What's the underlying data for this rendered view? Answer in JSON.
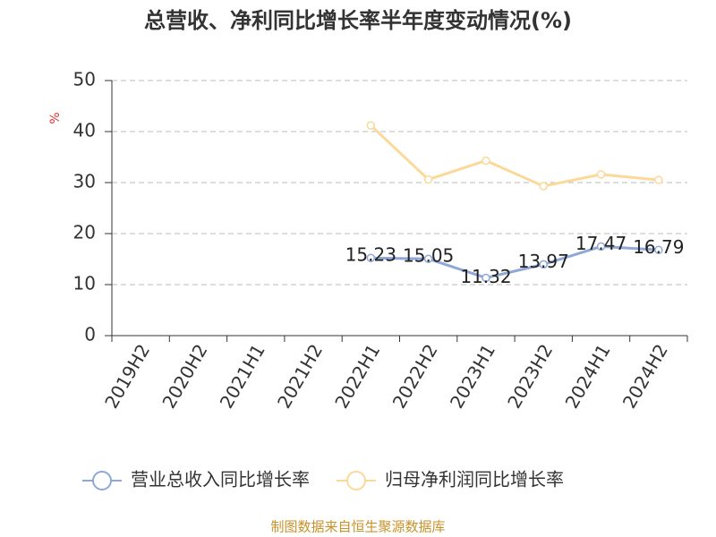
{
  "chart_data": {
    "type": "line",
    "title": "总营收、净利同比增长率半年度变动情况(%)",
    "y_label": "%",
    "categories": [
      "2019H2",
      "2020H2",
      "2021H1",
      "2021H2",
      "2022H1",
      "2022H2",
      "2023H1",
      "2023H2",
      "2024H1",
      "2024H2"
    ],
    "series": [
      {
        "name": "营业总收入同比增长率",
        "color": "#8fa8d8",
        "values": [
          null,
          null,
          null,
          null,
          15.23,
          15.05,
          11.32,
          13.97,
          17.47,
          16.79
        ],
        "data_labels": true
      },
      {
        "name": "归母净利润同比增长率",
        "color": "#fbd99b",
        "values": [
          null,
          null,
          null,
          null,
          41.2,
          30.6,
          34.3,
          29.3,
          31.6,
          30.5
        ]
      }
    ],
    "ylim": [
      0,
      50
    ],
    "yticks": [
      0,
      10,
      20,
      30,
      40,
      50
    ],
    "grid": true,
    "source": "制图数据来自恒生聚源数据库"
  }
}
